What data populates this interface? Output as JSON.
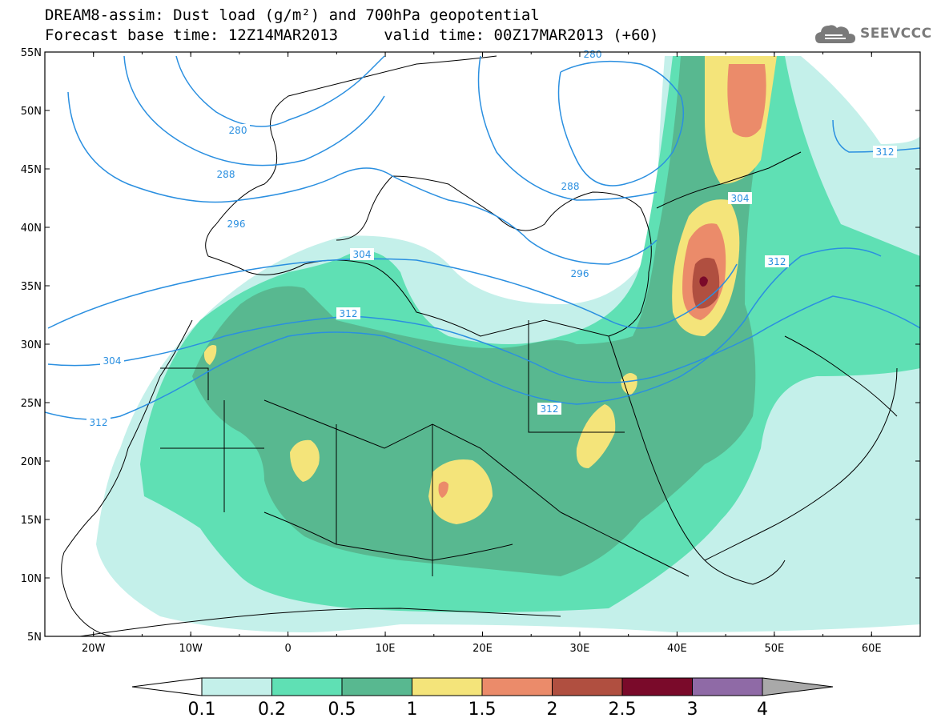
{
  "header": {
    "title_line1": "DREAM8-assim: Dust load (g/m²) and 700hPa geopotential",
    "title_line2": "Forecast base time: 12Z14MAR2013     valid time: 00Z17MAR2013 (+60)"
  },
  "logo": {
    "text": "SEEVCCC",
    "icon": "cloud-logo-icon"
  },
  "map": {
    "lon_range": [
      -25,
      65
    ],
    "lat_range": [
      5,
      55
    ],
    "lon_ticks": [
      {
        "value": -20,
        "label": "20W"
      },
      {
        "value": -10,
        "label": "10W"
      },
      {
        "value": 0,
        "label": "0"
      },
      {
        "value": 10,
        "label": "10E"
      },
      {
        "value": 20,
        "label": "20E"
      },
      {
        "value": 30,
        "label": "30E"
      },
      {
        "value": 40,
        "label": "40E"
      },
      {
        "value": 50,
        "label": "50E"
      },
      {
        "value": 60,
        "label": "60E"
      }
    ],
    "lat_ticks": [
      {
        "value": 55,
        "label": "55N"
      },
      {
        "value": 50,
        "label": "50N"
      },
      {
        "value": 45,
        "label": "45N"
      },
      {
        "value": 40,
        "label": "40N"
      },
      {
        "value": 35,
        "label": "35N"
      },
      {
        "value": 30,
        "label": "30N"
      },
      {
        "value": 25,
        "label": "25N"
      },
      {
        "value": 20,
        "label": "20N"
      },
      {
        "value": 15,
        "label": "15N"
      },
      {
        "value": 10,
        "label": "10N"
      },
      {
        "value": 5,
        "label": "5N"
      }
    ],
    "geopotential_labels": [
      "280",
      "280",
      "288",
      "288",
      "296",
      "296",
      "304",
      "304",
      "304",
      "312",
      "312",
      "312",
      "312",
      "312"
    ]
  },
  "colorbar": {
    "labels": [
      "0.1",
      "0.2",
      "0.5",
      "1",
      "1.5",
      "2",
      "2.5",
      "3",
      "4"
    ],
    "colors": [
      "#c4f0ea",
      "#5fe0b4",
      "#58b890",
      "#f4e47a",
      "#eb8b6a",
      "#b04f40",
      "#7a0a2a",
      "#8f6aa6"
    ],
    "under_color": "#ffffff",
    "over_color": "#a9a9a9"
  }
}
